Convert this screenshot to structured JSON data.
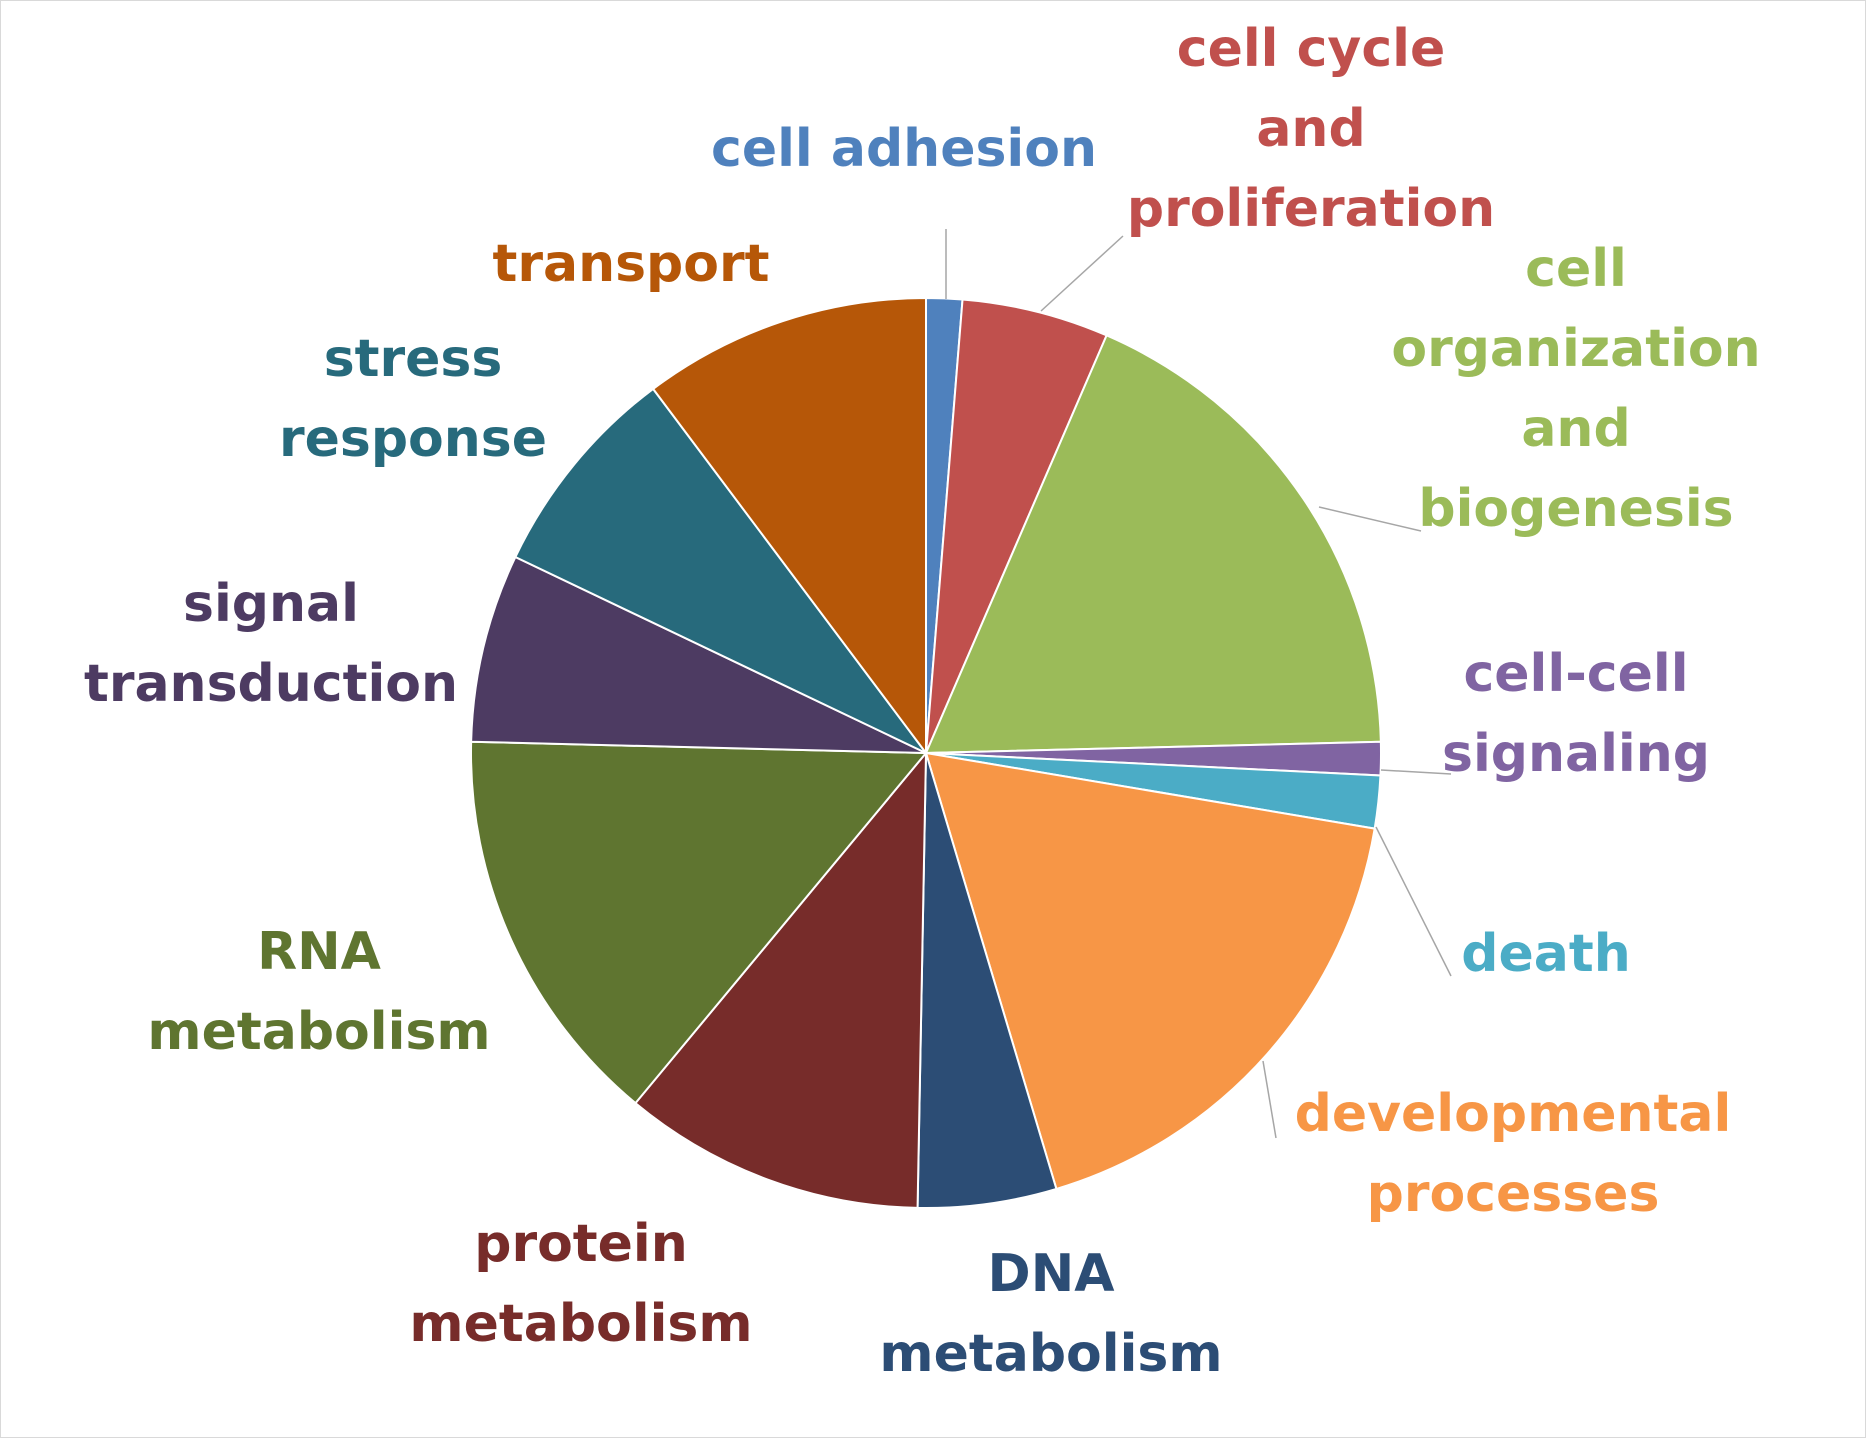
{
  "chart_data": {
    "type": "pie",
    "title": "",
    "start_angle_deg": 0,
    "direction": "clockwise",
    "slices": [
      {
        "label": "cell adhesion",
        "lines": [
          "cell adhesion"
        ],
        "value": 1.3,
        "color": "#4f81bd"
      },
      {
        "label": "cell cycle and proliferation",
        "lines": [
          "cell cycle",
          "and",
          "proliferation"
        ],
        "value": 5.3,
        "color": "#c0504d"
      },
      {
        "label": "cell organization and biogenesis",
        "lines": [
          "cell",
          "organization",
          "and",
          "biogenesis"
        ],
        "value": 18.4,
        "color": "#9bbb59"
      },
      {
        "label": "cell-cell signaling",
        "lines": [
          "cell-cell",
          "signaling"
        ],
        "value": 1.2,
        "color": "#8064a2"
      },
      {
        "label": "death",
        "lines": [
          "death"
        ],
        "value": 1.9,
        "color": "#4bacc6"
      },
      {
        "label": "developmental processes",
        "lines": [
          "developmental",
          "processes"
        ],
        "value": 18.0,
        "color": "#f79646"
      },
      {
        "label": "DNA metabolism",
        "lines": [
          "DNA",
          "metabolism"
        ],
        "value": 5.0,
        "color": "#2c4d75"
      },
      {
        "label": "protein metabolism",
        "lines": [
          "protein",
          "metabolism"
        ],
        "value": 10.9,
        "color": "#772c2a"
      },
      {
        "label": "RNA metabolism",
        "lines": [
          "RNA",
          "metabolism"
        ],
        "value": 14.6,
        "color": "#5f7530"
      },
      {
        "label": "signal transduction",
        "lines": [
          "signal",
          "transduction"
        ],
        "value": 6.8,
        "color": "#4d3b62"
      },
      {
        "label": "stress response",
        "lines": [
          "stress",
          "response"
        ],
        "value": 7.8,
        "color": "#276a7c"
      },
      {
        "label": "transport",
        "lines": [
          "transport"
        ],
        "value": 10.4,
        "color": "#b65708"
      }
    ]
  }
}
